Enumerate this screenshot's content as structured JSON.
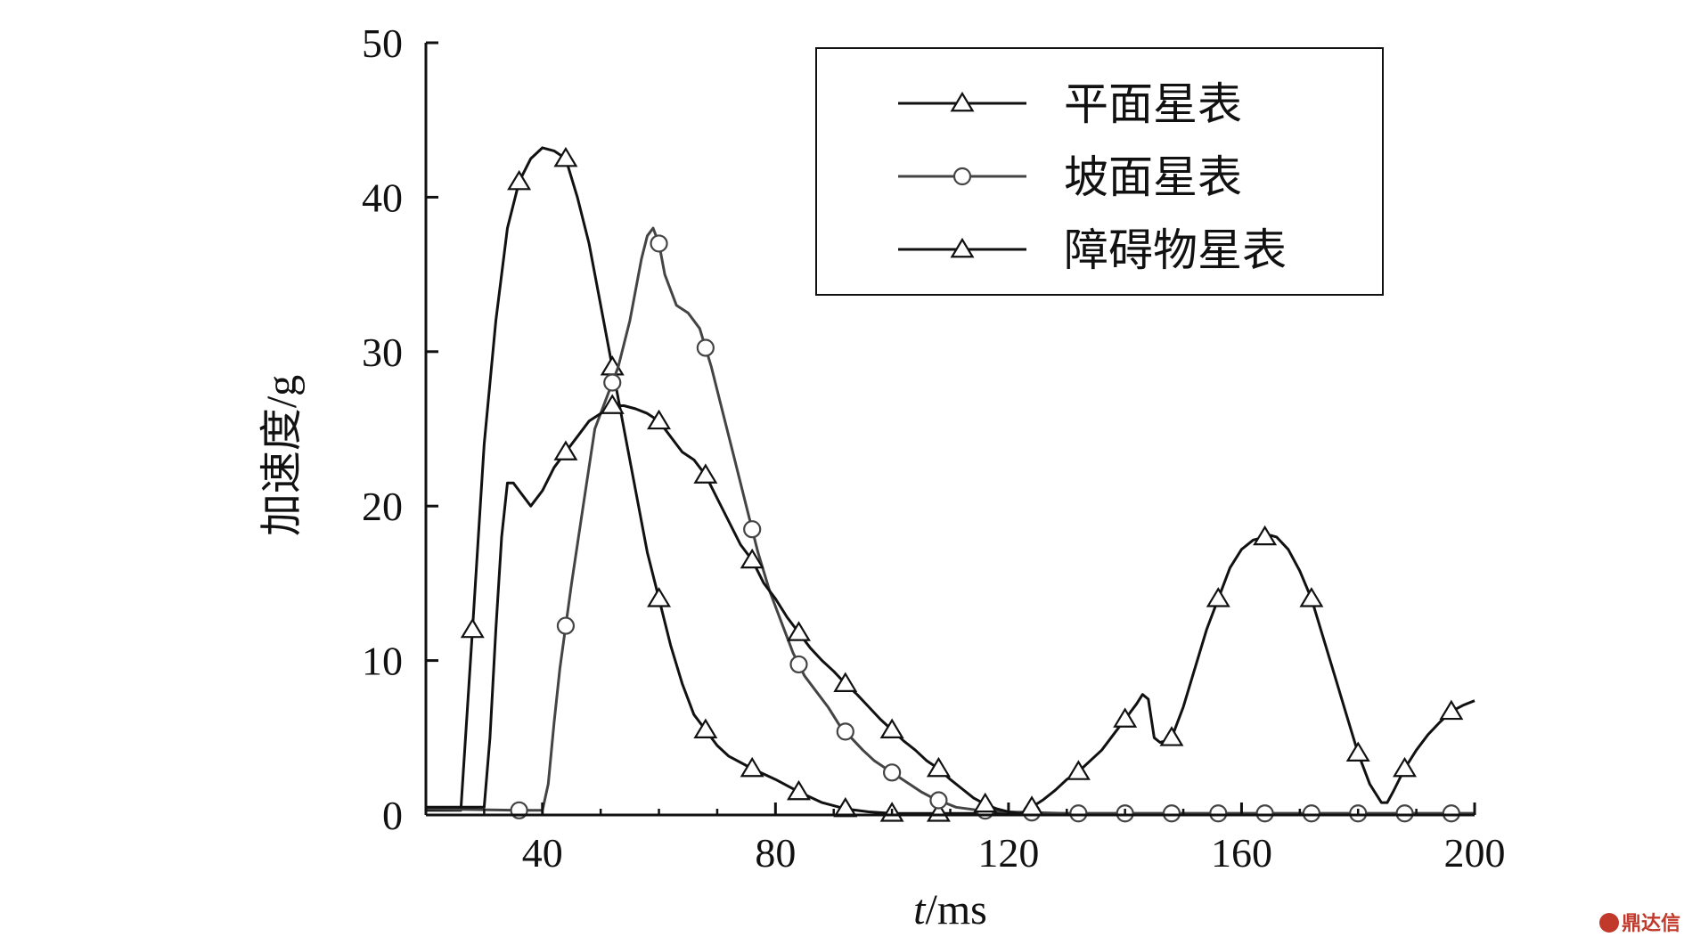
{
  "chart_data": {
    "type": "line",
    "xlabel_italic": "t",
    "xlabel_rest": "/ms",
    "ylabel": "加速度/g",
    "xlim": [
      20,
      200
    ],
    "ylim": [
      0,
      50
    ],
    "x_ticks": [
      40,
      80,
      120,
      160,
      200
    ],
    "y_ticks": [
      0,
      10,
      20,
      30,
      40,
      50
    ],
    "legend_position": "top-right",
    "grid": false,
    "series": [
      {
        "name": "平面星表",
        "marker": "triangle",
        "color": "#111111",
        "points": [
          [
            20,
            0.3
          ],
          [
            26,
            0.3
          ],
          [
            28,
            12
          ],
          [
            30,
            24
          ],
          [
            32,
            32
          ],
          [
            34,
            38
          ],
          [
            36,
            41
          ],
          [
            38,
            42.5
          ],
          [
            40,
            43.2
          ],
          [
            42,
            43
          ],
          [
            44,
            42.5
          ],
          [
            46,
            40
          ],
          [
            48,
            37
          ],
          [
            50,
            33
          ],
          [
            52,
            29
          ],
          [
            54,
            25
          ],
          [
            56,
            21
          ],
          [
            58,
            17
          ],
          [
            60,
            14
          ],
          [
            62,
            11
          ],
          [
            64,
            8.5
          ],
          [
            66,
            6.5
          ],
          [
            68,
            5.5
          ],
          [
            70,
            4.5
          ],
          [
            72,
            3.8
          ],
          [
            76,
            3
          ],
          [
            80,
            2.3
          ],
          [
            84,
            1.5
          ],
          [
            88,
            0.8
          ],
          [
            92,
            0.4
          ],
          [
            96,
            0.2
          ],
          [
            100,
            0.1
          ],
          [
            110,
            0.1
          ],
          [
            130,
            0.1
          ],
          [
            160,
            0.1
          ],
          [
            200,
            0.1
          ]
        ],
        "marker_x": [
          28,
          36,
          44,
          52,
          60,
          68,
          76,
          84,
          92,
          100,
          108
        ]
      },
      {
        "name": "坡面星表",
        "marker": "circle",
        "color": "#444444",
        "points": [
          [
            20,
            0.4
          ],
          [
            36,
            0.3
          ],
          [
            40,
            0.3
          ],
          [
            41,
            2
          ],
          [
            42,
            6
          ],
          [
            43,
            9.5
          ],
          [
            45,
            15
          ],
          [
            47,
            20
          ],
          [
            49,
            25
          ],
          [
            51,
            27
          ],
          [
            53,
            29
          ],
          [
            55,
            32
          ],
          [
            57,
            36
          ],
          [
            58,
            37.5
          ],
          [
            59,
            38
          ],
          [
            60,
            37
          ],
          [
            61,
            35
          ],
          [
            63,
            33
          ],
          [
            65,
            32.5
          ],
          [
            67,
            31.5
          ],
          [
            69,
            29
          ],
          [
            71,
            26
          ],
          [
            73,
            23
          ],
          [
            75,
            20
          ],
          [
            77,
            17
          ],
          [
            79,
            14.5
          ],
          [
            81,
            12.5
          ],
          [
            83,
            10.5
          ],
          [
            85,
            9
          ],
          [
            87,
            8
          ],
          [
            89,
            7
          ],
          [
            91,
            5.8
          ],
          [
            93,
            5
          ],
          [
            95,
            4.2
          ],
          [
            97,
            3.5
          ],
          [
            99,
            3
          ],
          [
            101,
            2.5
          ],
          [
            103,
            2
          ],
          [
            105,
            1.5
          ],
          [
            107,
            1.1
          ],
          [
            109,
            0.8
          ],
          [
            111,
            0.5
          ],
          [
            115,
            0.3
          ],
          [
            120,
            0.2
          ],
          [
            130,
            0.1
          ],
          [
            160,
            0.1
          ],
          [
            200,
            0.1
          ]
        ],
        "marker_x": [
          36,
          44,
          52,
          60,
          68,
          76,
          84,
          92,
          100,
          108,
          116,
          124,
          132,
          140,
          148,
          156,
          164,
          172,
          180,
          188,
          196
        ]
      },
      {
        "name": "障碍物星表",
        "marker": "triangle",
        "color": "#111111",
        "points": [
          [
            20,
            0.5
          ],
          [
            30,
            0.5
          ],
          [
            31,
            5
          ],
          [
            32,
            12
          ],
          [
            33,
            18
          ],
          [
            34,
            21.5
          ],
          [
            35,
            21.5
          ],
          [
            36,
            21
          ],
          [
            38,
            20
          ],
          [
            40,
            21
          ],
          [
            42,
            22.5
          ],
          [
            44,
            23.5
          ],
          [
            46,
            24.5
          ],
          [
            48,
            25.5
          ],
          [
            50,
            26
          ],
          [
            52,
            26.5
          ],
          [
            54,
            26.5
          ],
          [
            56,
            26.3
          ],
          [
            58,
            26
          ],
          [
            60,
            25.5
          ],
          [
            62,
            24.5
          ],
          [
            64,
            23.5
          ],
          [
            66,
            23
          ],
          [
            68,
            22
          ],
          [
            70,
            20.5
          ],
          [
            72,
            19
          ],
          [
            74,
            17.5
          ],
          [
            76,
            16.5
          ],
          [
            78,
            15
          ],
          [
            80,
            14
          ],
          [
            82,
            12.8
          ],
          [
            84,
            11.8
          ],
          [
            86,
            10.8
          ],
          [
            88,
            10
          ],
          [
            90,
            9.3
          ],
          [
            92,
            8.5
          ],
          [
            94,
            7.8
          ],
          [
            96,
            7
          ],
          [
            98,
            6.2
          ],
          [
            100,
            5.5
          ],
          [
            102,
            4.8
          ],
          [
            104,
            4.2
          ],
          [
            106,
            3.5
          ],
          [
            108,
            3
          ],
          [
            110,
            2.3
          ],
          [
            112,
            1.7
          ],
          [
            114,
            1.1
          ],
          [
            116,
            0.7
          ],
          [
            118,
            0.4
          ],
          [
            120,
            0.2
          ],
          [
            122,
            0.1
          ],
          [
            124,
            0.5
          ],
          [
            126,
            1
          ],
          [
            128,
            1.6
          ],
          [
            130,
            2.3
          ],
          [
            132,
            2.8
          ],
          [
            134,
            3.5
          ],
          [
            136,
            4.2
          ],
          [
            138,
            5.2
          ],
          [
            140,
            6.2
          ],
          [
            142,
            7.2
          ],
          [
            143,
            7.8
          ],
          [
            144,
            7.5
          ],
          [
            145,
            5
          ],
          [
            146,
            4.7
          ],
          [
            147,
            4.8
          ],
          [
            148,
            5
          ],
          [
            150,
            7
          ],
          [
            152,
            9.5
          ],
          [
            154,
            12
          ],
          [
            156,
            14
          ],
          [
            158,
            16
          ],
          [
            160,
            17.2
          ],
          [
            162,
            17.8
          ],
          [
            164,
            18
          ],
          [
            165,
            18.1
          ],
          [
            166,
            18
          ],
          [
            168,
            17.2
          ],
          [
            170,
            15.8
          ],
          [
            172,
            14
          ],
          [
            174,
            11.5
          ],
          [
            176,
            9
          ],
          [
            178,
            6.5
          ],
          [
            180,
            4
          ],
          [
            182,
            2
          ],
          [
            184,
            0.8
          ],
          [
            185,
            0.8
          ],
          [
            186,
            1.5
          ],
          [
            188,
            3
          ],
          [
            190,
            4.2
          ],
          [
            192,
            5.2
          ],
          [
            194,
            6
          ],
          [
            196,
            6.7
          ],
          [
            198,
            7.1
          ],
          [
            200,
            7.4
          ]
        ],
        "marker_x": [
          44,
          52,
          60,
          68,
          76,
          84,
          92,
          100,
          108,
          116,
          124,
          132,
          140,
          148,
          156,
          164,
          172,
          180,
          188,
          196
        ]
      }
    ]
  },
  "watermark": {
    "text": "鼎达信"
  }
}
